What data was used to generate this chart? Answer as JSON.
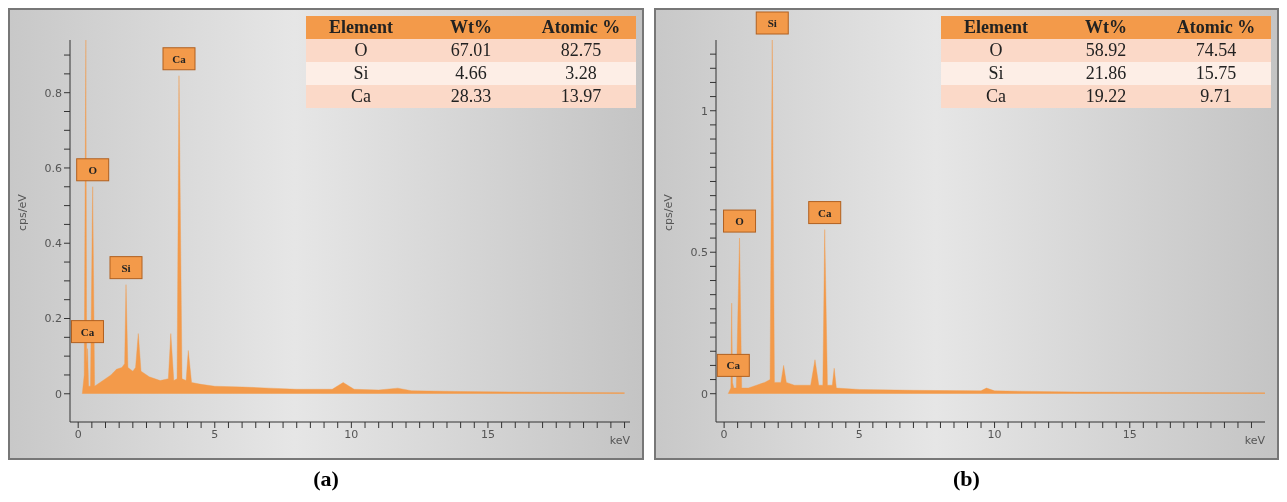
{
  "chart_data": [
    {
      "type": "area",
      "title": "(a)",
      "xlabel": "keV",
      "ylabel": "cps/eV",
      "color": "#f39a4a",
      "x": [
        0.15,
        0.22,
        0.28,
        0.31,
        0.34,
        0.38,
        0.45,
        0.53,
        0.6,
        0.8,
        1.0,
        1.2,
        1.4,
        1.6,
        1.7,
        1.75,
        1.82,
        2.0,
        2.1,
        2.2,
        2.3,
        2.6,
        3.0,
        3.3,
        3.39,
        3.5,
        3.62,
        3.69,
        3.8,
        3.95,
        4.03,
        4.15,
        4.5,
        5,
        6,
        7,
        8,
        9.3,
        9.7,
        10.1,
        11,
        11.7,
        12.2,
        14,
        17,
        20
      ],
      "values": [
        0,
        0.05,
        0.94,
        0.08,
        0.12,
        0.02,
        0.02,
        0.55,
        0.02,
        0.03,
        0.04,
        0.05,
        0.065,
        0.07,
        0.08,
        0.29,
        0.07,
        0.06,
        0.07,
        0.16,
        0.06,
        0.045,
        0.035,
        0.04,
        0.16,
        0.035,
        0.04,
        0.845,
        0.04,
        0.035,
        0.115,
        0.03,
        0.025,
        0.02,
        0.018,
        0.015,
        0.012,
        0.012,
        0.03,
        0.012,
        0.01,
        0.015,
        0.008,
        0.006,
        0.004,
        0.003
      ],
      "xlim": [
        -0.3,
        20.2
      ],
      "ylim": [
        -0.075,
        0.94
      ],
      "xticks": [
        0,
        {
          "value": 0.5,
          "label": null
        },
        {
          "value": 1,
          "label": null
        },
        {
          "value": 1.5,
          "label": null
        },
        {
          "value": 2,
          "label": null
        },
        {
          "value": 2.5,
          "label": null
        },
        {
          "value": 3,
          "label": null
        },
        {
          "value": 3.5,
          "label": null
        },
        {
          "value": 4,
          "label": null
        },
        {
          "value": 4.5,
          "label": null
        },
        5,
        {
          "value": 5.5,
          "label": null
        },
        {
          "value": 6,
          "label": null
        },
        {
          "value": 6.5,
          "label": null
        },
        {
          "value": 7,
          "label": null
        },
        {
          "value": 7.5,
          "label": null
        },
        {
          "value": 8,
          "label": null
        },
        {
          "value": 8.5,
          "label": null
        },
        {
          "value": 9,
          "label": null
        },
        {
          "value": 9.5,
          "label": null
        },
        10,
        {
          "value": 10.5,
          "label": null
        },
        {
          "value": 11,
          "label": null
        },
        {
          "value": 11.5,
          "label": null
        },
        {
          "value": 12,
          "label": null
        },
        {
          "value": 12.5,
          "label": null
        },
        {
          "value": 13,
          "label": null
        },
        {
          "value": 13.5,
          "label": null
        },
        {
          "value": 14,
          "label": null
        },
        {
          "value": 14.5,
          "label": null
        },
        15,
        {
          "value": 15.5,
          "label": null
        },
        {
          "value": 16,
          "label": null
        },
        {
          "value": 16.5,
          "label": null
        },
        {
          "value": 17,
          "label": null
        },
        {
          "value": 17.5,
          "label": null
        },
        {
          "value": 18,
          "label": null
        },
        {
          "value": 18.5,
          "label": null
        },
        {
          "value": 19,
          "label": null
        },
        {
          "value": 19.5,
          "label": null
        },
        {
          "value": 20,
          "label": null
        }
      ],
      "yticks": [
        0,
        {
          "value": 0.05,
          "label": null
        },
        {
          "value": 0.1,
          "label": null
        },
        {
          "value": 0.15,
          "label": null
        },
        0.2,
        {
          "value": 0.25,
          "label": null
        },
        {
          "value": 0.3,
          "label": null
        },
        {
          "value": 0.35,
          "label": null
        },
        0.4,
        {
          "value": 0.45,
          "label": null
        },
        {
          "value": 0.5,
          "label": null
        },
        {
          "value": 0.55,
          "label": null
        },
        0.6,
        {
          "value": 0.65,
          "label": null
        },
        {
          "value": 0.7,
          "label": null
        },
        {
          "value": 0.75,
          "label": null
        },
        0.8,
        {
          "value": 0.85,
          "label": null
        },
        {
          "value": 0.9,
          "label": null
        }
      ],
      "annotations": [
        "Element",
        "Wt%",
        "Atomic %",
        "O",
        "67.01",
        "82.75",
        "Si",
        "4.66",
        "3.28",
        "Ca",
        "28.33",
        "13.97",
        {
          "text": "Ca",
          "x": 0.34,
          "y": 0.12
        },
        {
          "text": "O",
          "x": 0.53,
          "y": 0.55
        },
        {
          "text": "Si",
          "x": 1.75,
          "y": 0.29
        },
        {
          "text": "Ca",
          "x": 3.69,
          "y": 0.845
        }
      ]
    },
    {
      "type": "area",
      "title": "(b)",
      "xlabel": "keV",
      "ylabel": "cps/eV",
      "color": "#f39a4a",
      "x": [
        0.15,
        0.25,
        0.28,
        0.31,
        0.36,
        0.45,
        0.57,
        0.65,
        0.9,
        1.2,
        1.5,
        1.7,
        1.78,
        1.86,
        2.1,
        2.2,
        2.3,
        2.6,
        3.2,
        3.36,
        3.5,
        3.65,
        3.72,
        3.82,
        4.0,
        4.07,
        4.15,
        5,
        7,
        9.5,
        9.7,
        10,
        13,
        20
      ],
      "values": [
        0,
        0.02,
        0.32,
        0.04,
        0.02,
        0.02,
        0.55,
        0.02,
        0.02,
        0.03,
        0.04,
        0.05,
        1.25,
        0.04,
        0.04,
        0.1,
        0.04,
        0.03,
        0.03,
        0.12,
        0.03,
        0.03,
        0.58,
        0.03,
        0.03,
        0.09,
        0.02,
        0.015,
        0.012,
        0.01,
        0.02,
        0.01,
        0.006,
        0.003
      ],
      "xlim": [
        -0.3,
        20
      ],
      "ylim": [
        -0.1,
        1.25
      ],
      "xticks": [
        0,
        {
          "value": 0.5,
          "label": null
        },
        {
          "value": 1,
          "label": null
        },
        {
          "value": 1.5,
          "label": null
        },
        {
          "value": 2,
          "label": null
        },
        {
          "value": 2.5,
          "label": null
        },
        {
          "value": 3,
          "label": null
        },
        {
          "value": 3.5,
          "label": null
        },
        {
          "value": 4,
          "label": null
        },
        {
          "value": 4.5,
          "label": null
        },
        5,
        {
          "value": 5.5,
          "label": null
        },
        {
          "value": 6,
          "label": null
        },
        {
          "value": 6.5,
          "label": null
        },
        {
          "value": 7,
          "label": null
        },
        {
          "value": 7.5,
          "label": null
        },
        {
          "value": 8,
          "label": null
        },
        {
          "value": 8.5,
          "label": null
        },
        {
          "value": 9,
          "label": null
        },
        {
          "value": 9.5,
          "label": null
        },
        10,
        {
          "value": 10.5,
          "label": null
        },
        {
          "value": 11,
          "label": null
        },
        {
          "value": 11.5,
          "label": null
        },
        {
          "value": 12,
          "label": null
        },
        {
          "value": 12.5,
          "label": null
        },
        {
          "value": 13,
          "label": null
        },
        {
          "value": 13.5,
          "label": null
        },
        {
          "value": 14,
          "label": null
        },
        {
          "value": 14.5,
          "label": null
        },
        15,
        {
          "value": 15.5,
          "label": null
        },
        {
          "value": 16,
          "label": null
        },
        {
          "value": 16.5,
          "label": null
        },
        {
          "value": 17,
          "label": null
        },
        {
          "value": 17.5,
          "label": null
        },
        {
          "value": 18,
          "label": null
        },
        {
          "value": 18.5,
          "label": null
        },
        {
          "value": 19,
          "label": null
        },
        {
          "value": 19.5,
          "label": null
        }
      ],
      "yticks": [
        0,
        {
          "value": 0.05,
          "label": null
        },
        {
          "value": 0.1,
          "label": null
        },
        {
          "value": 0.15,
          "label": null
        },
        {
          "value": 0.2,
          "label": null
        },
        {
          "value": 0.25,
          "label": null
        },
        {
          "value": 0.3,
          "label": null
        },
        {
          "value": 0.35,
          "label": null
        },
        {
          "value": 0.4,
          "label": null
        },
        {
          "value": 0.45,
          "label": null
        },
        0.5,
        {
          "value": 0.55,
          "label": null
        },
        {
          "value": 0.6,
          "label": null
        },
        {
          "value": 0.65,
          "label": null
        },
        {
          "value": 0.7,
          "label": null
        },
        {
          "value": 0.75,
          "label": null
        },
        {
          "value": 0.8,
          "label": null
        },
        {
          "value": 0.85,
          "label": null
        },
        {
          "value": 0.9,
          "label": null
        },
        {
          "value": 0.95,
          "label": null
        },
        1,
        {
          "value": 1.05,
          "label": null
        },
        {
          "value": 1.1,
          "label": null
        },
        {
          "value": 1.15,
          "label": null
        },
        {
          "value": 1.2,
          "label": null
        }
      ],
      "annotations": [
        "Element",
        "Wt%",
        "Atomic %",
        "O",
        "58.92",
        "74.54",
        "Si",
        "21.86",
        "15.75",
        "Ca",
        "19.22",
        "9.71",
        {
          "text": "Ca",
          "x": 0.34,
          "y": 0.04
        },
        {
          "text": "O",
          "x": 0.57,
          "y": 0.55
        },
        {
          "text": "Si",
          "x": 1.78,
          "y": 1.25
        },
        {
          "text": "Ca",
          "x": 3.72,
          "y": 0.58
        }
      ]
    }
  ]
}
